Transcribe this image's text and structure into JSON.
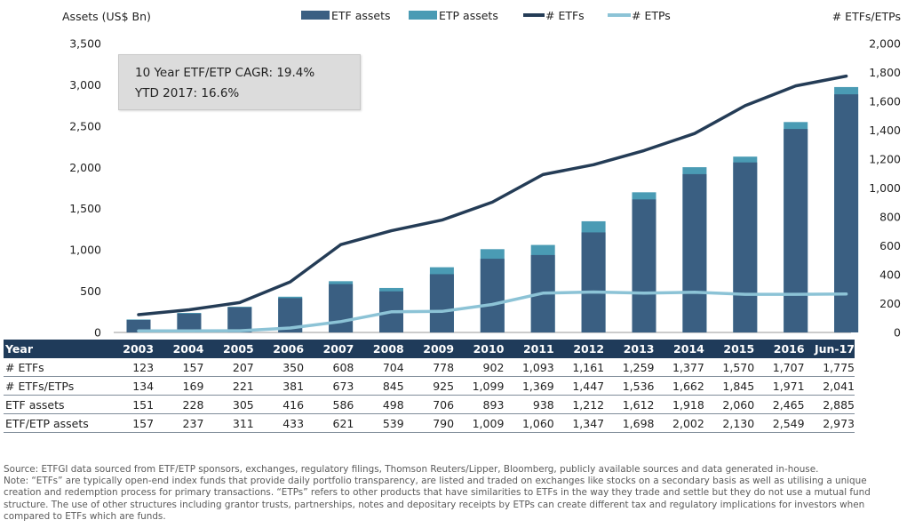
{
  "chart_data": {
    "type": "bar+line",
    "categories": [
      "2003",
      "2004",
      "2005",
      "2006",
      "2007",
      "2008",
      "2009",
      "2010",
      "2011",
      "2012",
      "2013",
      "2014",
      "2015",
      "2016",
      "Jun-17"
    ],
    "bar_series": [
      {
        "name": "ETF assets",
        "color": "#3a5f82",
        "values": [
          151,
          228,
          305,
          416,
          586,
          498,
          706,
          893,
          938,
          1212,
          1612,
          1918,
          2060,
          2465,
          2885
        ]
      },
      {
        "name": "ETP assets",
        "color": "#4a9bb4",
        "values": [
          157,
          237,
          311,
          433,
          621,
          539,
          790,
          1009,
          1060,
          1347,
          1698,
          2002,
          2130,
          2549,
          2973
        ]
      }
    ],
    "line_series": [
      {
        "name": "# ETFs",
        "color": "#243c56",
        "values": [
          123,
          157,
          207,
          350,
          608,
          704,
          778,
          902,
          1093,
          1161,
          1259,
          1377,
          1570,
          1707,
          1775
        ]
      },
      {
        "name": "# ETPs",
        "color": "#8cc3d6",
        "values": [
          11,
          11,
          12,
          31,
          75,
          143,
          146,
          194,
          272,
          280,
          272,
          278,
          264,
          264,
          266
        ]
      }
    ],
    "y_left_label": "Assets (US$ Bn)",
    "y_left_ticks": [
      "0",
      "500",
      "1,000",
      "1,500",
      "2,000",
      "2,500",
      "3,000",
      "3,500"
    ],
    "y_left_range": [
      0,
      3500
    ],
    "y_right_label": "# ETFs/ETPs",
    "y_right_ticks": [
      "0",
      "200",
      "400",
      "600",
      "800",
      "1,000",
      "1,200",
      "1,400",
      "1,600",
      "1,800",
      "2,000"
    ],
    "y_right_range": [
      0,
      2000
    ],
    "grid": false,
    "legend_position": "top-center"
  },
  "annotation": {
    "line1": "10 Year ETF/ETP CAGR: 19.4%",
    "line2": "YTD 2017: 16.6%"
  },
  "table": {
    "header": [
      "Year",
      "2003",
      "2004",
      "2005",
      "2006",
      "2007",
      "2008",
      "2009",
      "2010",
      "2011",
      "2012",
      "2013",
      "2014",
      "2015",
      "2016",
      "Jun-17"
    ],
    "rows": [
      [
        "# ETFs",
        "123",
        "157",
        "207",
        "350",
        "608",
        "704",
        "778",
        "902",
        "1,093",
        "1,161",
        "1,259",
        "1,377",
        "1,570",
        "1,707",
        "1,775"
      ],
      [
        "# ETFs/ETPs",
        "134",
        "169",
        "221",
        "381",
        "673",
        "845",
        "925",
        "1,099",
        "1,369",
        "1,447",
        "1,536",
        "1,662",
        "1,845",
        "1,971",
        "2,041"
      ],
      [
        "ETF assets",
        "151",
        "228",
        "305",
        "416",
        "586",
        "498",
        "706",
        "893",
        "938",
        "1,212",
        "1,612",
        "1,918",
        "2,060",
        "2,465",
        "2,885"
      ],
      [
        "ETF/ETP assets",
        "157",
        "237",
        "311",
        "433",
        "621",
        "539",
        "790",
        "1,009",
        "1,060",
        "1,347",
        "1,698",
        "2,002",
        "2,130",
        "2,549",
        "2,973"
      ]
    ]
  },
  "notes": {
    "source": "Source: ETFGI data sourced from ETF/ETP sponsors, exchanges, regulatory filings, Thomson Reuters/Lipper, Bloomberg, publicly available sources and data generated in-house.",
    "note": "Note: “ETFs” are typically open-end index funds that provide daily portfolio transparency, are listed and traded on exchanges like stocks on a secondary basis as well as utilising a unique creation and redemption process for primary transactions. “ETPs” refers to other products that have similarities to ETFs in the way they trade and settle but they do not use a mutual fund structure. The use of other structures including grantor trusts, partnerships, notes and depositary receipts by ETPs can create different tax and regulatory implications for investors when compared to ETFs which are funds."
  }
}
